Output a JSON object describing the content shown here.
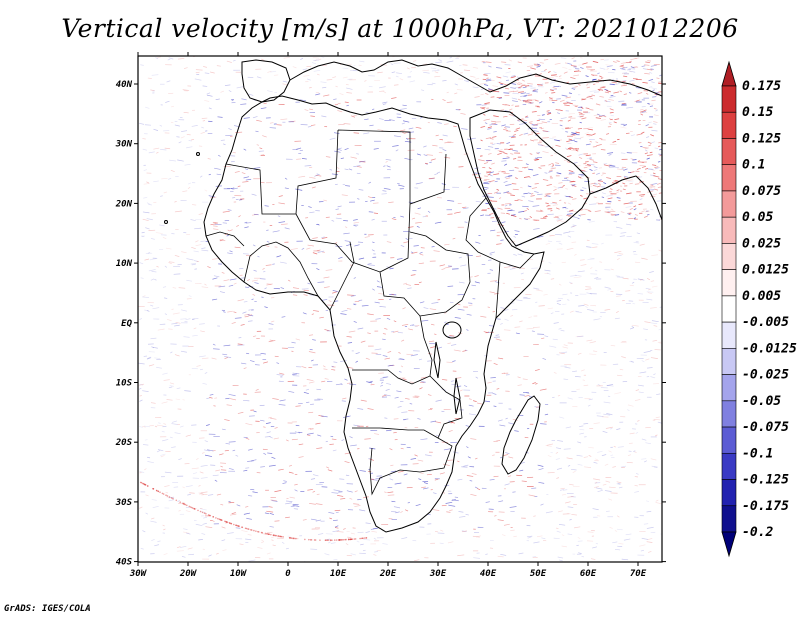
{
  "title": "Vertical velocity [m/s] at 1000hPa, VT: 2021012206",
  "footer": "GrADS: IGES/COLA",
  "lat_ticks": [
    "40N",
    "30N",
    "20N",
    "10N",
    "EQ",
    "10S",
    "20S",
    "30S",
    "40S"
  ],
  "lon_ticks": [
    "30W",
    "20W",
    "10W",
    "0",
    "10E",
    "20E",
    "30E",
    "40E",
    "50E",
    "60E",
    "70E"
  ],
  "colorbar": {
    "labels": [
      "0.175",
      "0.15",
      "0.125",
      "0.1",
      "0.075",
      "0.05",
      "0.025",
      "0.0125",
      "0.005",
      "-0.005",
      "-0.0125",
      "-0.025",
      "-0.05",
      "-0.075",
      "-0.1",
      "-0.125",
      "-0.175",
      "-0.2"
    ],
    "colors": [
      "#b01e25",
      "#cc2b2e",
      "#dd4040",
      "#e65a5a",
      "#ee7878",
      "#f39a9a",
      "#f8baba",
      "#fbd8d8",
      "#fff0f0",
      "#ffffff",
      "#e8e8fc",
      "#c8c8f4",
      "#a4a4ec",
      "#8080e0",
      "#5c5cd4",
      "#3a3ac4",
      "#2222b0",
      "#10108e",
      "#000078"
    ]
  },
  "palette": {
    "upward": "#3a3ac4",
    "downward": "#dd4040",
    "coast": "#000000"
  }
}
